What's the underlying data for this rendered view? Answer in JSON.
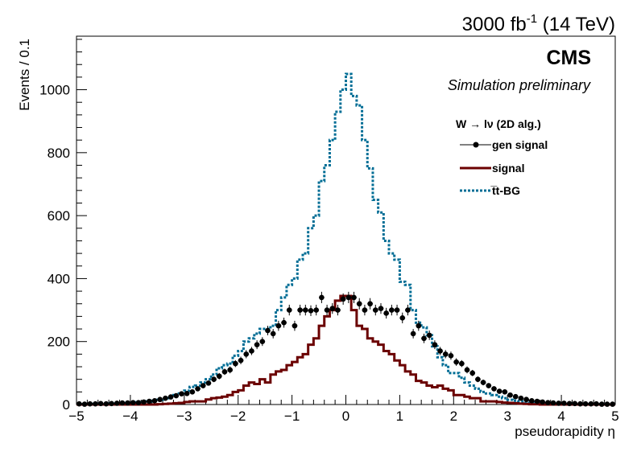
{
  "chart_data": {
    "type": "line",
    "lumi_label": {
      "main": "3000 fb",
      "sup": "-1",
      "energy": " (14 TeV)"
    },
    "experiment": "CMS",
    "subtitle": "Simulation preliminary",
    "xlabel": "pseudorapidity η",
    "ylabel": "Events / 0.1",
    "xlim": [
      -5,
      5
    ],
    "ylim": [
      0,
      1170
    ],
    "xticks": [
      -5,
      -4,
      -3,
      -2,
      -1,
      0,
      1,
      2,
      3,
      4,
      5
    ],
    "xtick_labels": [
      "−5",
      "−4",
      "−3",
      "−2",
      "−1",
      "0",
      "1",
      "2",
      "3",
      "4",
      "5"
    ],
    "yticks": [
      0,
      200,
      400,
      600,
      800,
      1000
    ],
    "ytick_labels": [
      "0",
      "200",
      "400",
      "600",
      "800",
      "1000"
    ],
    "legend": {
      "header": "W  → lν (2D alg.)",
      "placement": "top-right",
      "entries": [
        {
          "label": "gen signal",
          "style": "marker",
          "color": "#000000"
        },
        {
          "label": "signal",
          "style": "solid",
          "color": "#6b0000"
        },
        {
          "label": "t̅t-BG",
          "style": "dotted",
          "color": "#006d95"
        }
      ]
    },
    "bin_edges": [
      -5,
      5
    ],
    "bin_width": 0.1,
    "series": [
      {
        "name": "gen signal",
        "style": "points-with-errors",
        "color": "#000000",
        "x": [
          -4.95,
          -4.85,
          -4.75,
          -4.65,
          -4.55,
          -4.45,
          -4.35,
          -4.25,
          -4.15,
          -4.05,
          -3.95,
          -3.85,
          -3.75,
          -3.65,
          -3.55,
          -3.45,
          -3.35,
          -3.25,
          -3.15,
          -3.05,
          -2.95,
          -2.85,
          -2.75,
          -2.65,
          -2.55,
          -2.45,
          -2.35,
          -2.25,
          -2.15,
          -2.05,
          -1.95,
          -1.85,
          -1.75,
          -1.65,
          -1.55,
          -1.45,
          -1.35,
          -1.25,
          -1.15,
          -1.05,
          -0.95,
          -0.85,
          -0.75,
          -0.65,
          -0.55,
          -0.45,
          -0.35,
          -0.25,
          -0.15,
          -0.05,
          0.05,
          0.15,
          0.25,
          0.35,
          0.45,
          0.55,
          0.65,
          0.75,
          0.85,
          0.95,
          1.05,
          1.15,
          1.25,
          1.35,
          1.45,
          1.55,
          1.65,
          1.75,
          1.85,
          1.95,
          2.05,
          2.15,
          2.25,
          2.35,
          2.45,
          2.55,
          2.65,
          2.75,
          2.85,
          2.95,
          3.05,
          3.15,
          3.25,
          3.35,
          3.45,
          3.55,
          3.65,
          3.75,
          3.85,
          3.95,
          4.05,
          4.15,
          4.25,
          4.35,
          4.45,
          4.55,
          4.65,
          4.75,
          4.85,
          4.95
        ],
        "values": [
          2,
          1,
          2,
          2,
          3,
          2,
          3,
          4,
          5,
          5,
          6,
          6,
          8,
          10,
          12,
          16,
          20,
          24,
          28,
          34,
          35,
          40,
          50,
          60,
          68,
          80,
          90,
          104,
          110,
          130,
          140,
          160,
          170,
          190,
          200,
          235,
          225,
          250,
          260,
          300,
          250,
          300,
          300,
          298,
          300,
          340,
          300,
          305,
          300,
          335,
          340,
          340,
          320,
          300,
          320,
          300,
          305,
          290,
          300,
          300,
          275,
          300,
          225,
          250,
          210,
          220,
          190,
          170,
          160,
          155,
          135,
          130,
          110,
          100,
          80,
          70,
          60,
          50,
          42,
          40,
          30,
          25,
          20,
          16,
          12,
          10,
          8,
          6,
          5,
          4,
          4,
          3,
          3,
          2,
          2,
          2,
          2,
          1,
          1,
          1
        ],
        "errors": [
          2,
          1,
          2,
          2,
          2,
          2,
          2,
          2,
          3,
          3,
          3,
          3,
          3,
          4,
          4,
          4,
          5,
          5,
          6,
          6,
          6,
          7,
          7,
          8,
          8,
          9,
          10,
          10,
          11,
          11,
          12,
          13,
          13,
          14,
          14,
          15,
          15,
          16,
          16,
          17,
          16,
          17,
          17,
          17,
          17,
          18,
          17,
          17,
          17,
          18,
          18,
          18,
          18,
          17,
          18,
          17,
          17,
          17,
          17,
          17,
          17,
          17,
          15,
          16,
          15,
          15,
          14,
          13,
          13,
          13,
          12,
          11,
          11,
          10,
          9,
          9,
          8,
          7,
          7,
          7,
          6,
          5,
          5,
          4,
          4,
          3,
          3,
          3,
          2,
          2,
          2,
          2,
          2,
          2,
          2,
          2,
          2,
          1,
          1,
          1
        ]
      },
      {
        "name": "signal",
        "style": "histogram",
        "color": "#6b0000",
        "values": [
          0,
          0,
          0,
          0,
          0,
          0,
          0,
          0,
          0,
          0,
          0,
          0,
          0,
          0,
          0,
          1,
          2,
          3,
          4,
          5,
          8,
          10,
          10,
          10,
          16,
          20,
          22,
          25,
          30,
          40,
          45,
          60,
          70,
          65,
          80,
          70,
          95,
          105,
          110,
          125,
          135,
          150,
          160,
          190,
          210,
          250,
          280,
          300,
          330,
          345,
          345,
          300,
          250,
          240,
          210,
          200,
          190,
          170,
          160,
          140,
          125,
          105,
          95,
          75,
          70,
          60,
          55,
          60,
          50,
          45,
          30,
          30,
          25,
          20,
          20,
          10,
          10,
          10,
          8,
          6,
          5,
          4,
          3,
          2,
          1,
          1,
          0,
          0,
          0,
          0,
          0,
          0,
          0,
          0,
          0,
          0,
          0,
          0,
          0,
          0
        ]
      },
      {
        "name": "t̅t-BG",
        "style": "histogram-dotted",
        "color": "#006d95",
        "values": [
          1,
          1,
          1,
          2,
          2,
          2,
          3,
          3,
          4,
          5,
          6,
          7,
          8,
          10,
          12,
          15,
          20,
          25,
          30,
          35,
          44,
          56,
          60,
          70,
          80,
          95,
          115,
          125,
          130,
          155,
          170,
          200,
          210,
          225,
          240,
          240,
          250,
          300,
          340,
          380,
          400,
          460,
          480,
          560,
          600,
          710,
          760,
          840,
          930,
          1000,
          1050,
          980,
          950,
          840,
          750,
          650,
          610,
          520,
          480,
          460,
          390,
          380,
          300,
          260,
          245,
          220,
          185,
          150,
          125,
          100,
          100,
          85,
          70,
          60,
          50,
          40,
          35,
          30,
          25,
          20,
          15,
          12,
          10,
          8,
          6,
          5,
          4,
          3,
          3,
          2,
          2,
          2,
          1,
          1,
          1,
          1,
          1,
          1,
          1,
          1
        ]
      }
    ]
  }
}
